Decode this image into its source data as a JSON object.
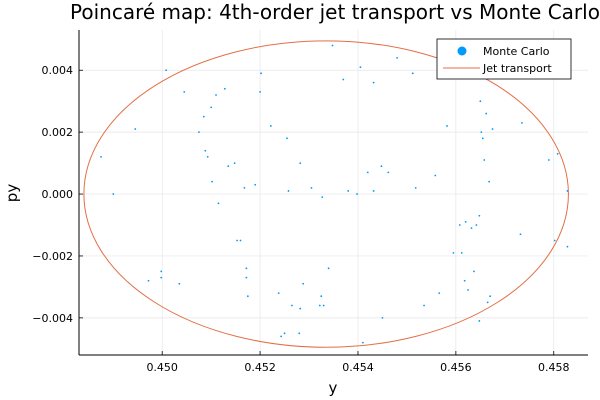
{
  "chart_data": {
    "type": "scatter",
    "title": "Poincaré map: 4th-order jet transport vs Monte Carlo",
    "xlabel": "y",
    "ylabel": "py",
    "xlim": [
      0.4483,
      0.4587
    ],
    "ylim": [
      -0.0052,
      0.0053
    ],
    "xticks": [
      0.45,
      0.452,
      0.454,
      0.456,
      0.458
    ],
    "xtick_labels": [
      "0.450",
      "0.452",
      "0.454",
      "0.456",
      "0.458"
    ],
    "yticks": [
      -0.004,
      -0.002,
      0.0,
      0.002,
      0.004
    ],
    "ytick_labels": [
      "−0.004",
      "−0.002",
      "0.000",
      "0.002",
      "0.004"
    ],
    "grid": true,
    "legend_position": "top-right",
    "colors": {
      "monte_carlo": "#009AFA",
      "jet_transport": "#E36F47"
    },
    "series": [
      {
        "name": "Monte Carlo",
        "kind": "points",
        "x": [
          0.44875,
          0.449,
          0.44945,
          0.44972,
          0.44998,
          0.44998,
          0.45008,
          0.45035,
          0.45045,
          0.45075,
          0.45085,
          0.45088,
          0.45093,
          0.451,
          0.45102,
          0.45115,
          0.4511,
          0.45128,
          0.45135,
          0.45148,
          0.45153,
          0.4516,
          0.45168,
          0.45172,
          0.45172,
          0.45175,
          0.4519,
          0.452,
          0.45202,
          0.45222,
          0.45238,
          0.45243,
          0.4525,
          0.45255,
          0.45258,
          0.45265,
          0.4528,
          0.45282,
          0.45282,
          0.45288,
          0.45305,
          0.45322,
          0.45327,
          0.45325,
          0.4533,
          0.4534,
          0.45348,
          0.4537,
          0.4538,
          0.45398,
          0.45405,
          0.4541,
          0.4542,
          0.45432,
          0.45432,
          0.4545,
          0.45448,
          0.45462,
          0.4548,
          0.45512,
          0.45518,
          0.45535,
          0.45558,
          0.45566,
          0.45582,
          0.45595,
          0.45608,
          0.45612,
          0.45618,
          0.4562,
          0.45625,
          0.45632,
          0.45637,
          0.45642,
          0.45648,
          0.45648,
          0.4565,
          0.45652,
          0.45655,
          0.45658,
          0.45662,
          0.45665,
          0.45668,
          0.4567,
          0.45675,
          0.45735,
          0.45732,
          0.4579,
          0.45802,
          0.45808,
          0.45828,
          0.45828
        ],
        "y": [
          0.0012,
          0.0,
          0.0021,
          -0.0028,
          -0.0027,
          -0.0025,
          0.004,
          -0.0029,
          0.0033,
          0.002,
          0.0025,
          0.0014,
          0.0012,
          0.0028,
          0.0004,
          -0.0003,
          0.0032,
          0.0034,
          0.0009,
          0.001,
          -0.0015,
          -0.0015,
          0.0002,
          -0.0024,
          -0.0027,
          -0.0033,
          0.0003,
          0.0033,
          0.0039,
          0.0022,
          -0.0032,
          -0.0046,
          -0.0045,
          0.0018,
          0.0001,
          -0.0036,
          -0.0045,
          -0.0037,
          0.001,
          -0.0029,
          0.0002,
          -0.0036,
          -0.0001,
          -0.0033,
          -0.0036,
          -0.0024,
          0.0048,
          0.0037,
          0.0001,
          0.0,
          0.0041,
          -0.0048,
          0.0007,
          0.0036,
          0.0001,
          -0.004,
          0.0009,
          0.0007,
          0.0044,
          0.0039,
          0.0002,
          -0.0036,
          0.0006,
          -0.0032,
          0.0022,
          -0.0019,
          -0.001,
          -0.0019,
          -0.0028,
          -0.0009,
          -0.0031,
          -0.0011,
          -0.0025,
          -0.001,
          -0.0041,
          -0.0007,
          0.003,
          0.002,
          0.0018,
          0.0011,
          0.0026,
          -0.0035,
          0.0004,
          -0.0033,
          0.0021,
          0.0023,
          -0.0013,
          0.0011,
          -0.0015,
          0.0013,
          0.0001,
          -0.0017
        ]
      },
      {
        "name": "Jet transport",
        "kind": "ellipse",
        "center": [
          0.45335,
          0.0
        ],
        "radius_x": 0.00495,
        "radius_y": 0.00495
      }
    ]
  }
}
